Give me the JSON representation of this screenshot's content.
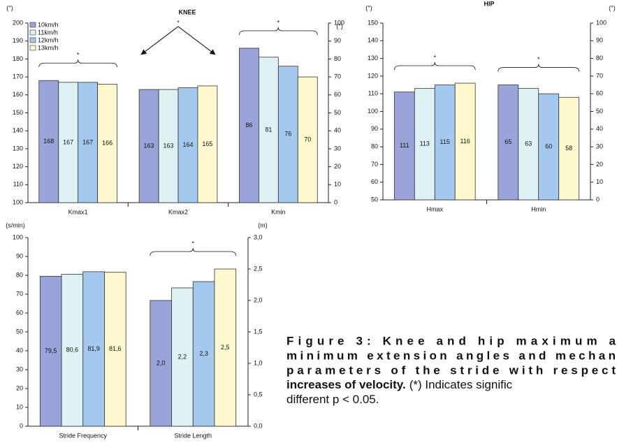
{
  "chart_data": [
    {
      "type": "bar",
      "title": "KNEE",
      "ylabel": "(°)",
      "y2label": "(°)",
      "categories": [
        "Kmax1",
        "Kmax2",
        "Kmin"
      ],
      "category_axes": [
        "y",
        "y",
        "y2"
      ],
      "series": [
        {
          "name": "10km/h",
          "color": "#9ba4d8",
          "values": [
            168,
            163,
            86
          ]
        },
        {
          "name": "11km/h",
          "color": "#def2f5",
          "values": [
            167,
            163,
            81
          ]
        },
        {
          "name": "12km/h",
          "color": "#a5c9ee",
          "values": [
            167,
            164,
            76
          ]
        },
        {
          "name": "13km/h",
          "color": "#fdf8cd",
          "values": [
            166,
            165,
            70
          ]
        }
      ],
      "ylim": [
        100,
        200
      ],
      "yticks": [
        100,
        110,
        120,
        130,
        140,
        150,
        160,
        170,
        180,
        190,
        200
      ],
      "y2lim": [
        0,
        100
      ],
      "y2ticks": [
        0,
        10,
        20,
        30,
        40,
        50,
        60,
        70,
        80,
        90,
        100
      ],
      "legend": "upper left",
      "annotations": [
        {
          "text": "*",
          "category": "Kmax1",
          "kind": "brace"
        },
        {
          "text": "*",
          "category": "Kmax2",
          "kind": "arrows"
        },
        {
          "text": "*",
          "category": "Kmin",
          "kind": "brace"
        }
      ]
    },
    {
      "type": "bar",
      "title": "HIP",
      "ylabel": "(°)",
      "y2label": "(°)",
      "categories": [
        "Hmax",
        "Hmin"
      ],
      "category_axes": [
        "y",
        "y2"
      ],
      "series": [
        {
          "color": "#9ba4d8",
          "values": [
            111,
            65
          ]
        },
        {
          "color": "#def2f5",
          "values": [
            113,
            63
          ]
        },
        {
          "color": "#a5c9ee",
          "values": [
            115,
            60
          ]
        },
        {
          "color": "#fdf8cd",
          "values": [
            116,
            58
          ]
        }
      ],
      "ylim": [
        50,
        150
      ],
      "yticks": [
        50,
        60,
        70,
        80,
        90,
        100,
        110,
        120,
        130,
        140,
        150
      ],
      "y2lim": [
        0,
        100
      ],
      "y2ticks": [
        0,
        10,
        20,
        30,
        40,
        50,
        60,
        70,
        80,
        90,
        100
      ],
      "annotations": [
        {
          "text": "*",
          "category": "Hmax",
          "kind": "brace"
        },
        {
          "text": "*",
          "category": "Hmin",
          "kind": "brace"
        }
      ]
    },
    {
      "type": "bar",
      "ylabel": "(s/min)",
      "y2label": "(m)",
      "categories": [
        "Stride Frequency",
        "Stride Length"
      ],
      "category_axes": [
        "y",
        "y2"
      ],
      "series": [
        {
          "color": "#9ba4d8",
          "values": [
            79.5,
            2.0
          ],
          "value_labels": [
            "79,5",
            "2,0"
          ]
        },
        {
          "color": "#def2f5",
          "values": [
            80.6,
            2.2
          ],
          "value_labels": [
            "80,6",
            "2,2"
          ]
        },
        {
          "color": "#a5c9ee",
          "values": [
            81.9,
            2.3
          ],
          "value_labels": [
            "81,9",
            "2,3"
          ]
        },
        {
          "color": "#fdf8cd",
          "values": [
            81.6,
            2.5
          ],
          "value_labels": [
            "81,6",
            "2,5"
          ]
        }
      ],
      "ylim": [
        0,
        100
      ],
      "yticks": [
        0,
        10,
        20,
        30,
        40,
        50,
        60,
        70,
        80,
        90,
        100
      ],
      "y2lim": [
        0,
        3
      ],
      "y2ticks": [
        {
          "value": 0,
          "label": "0,0"
        },
        {
          "value": 0.5,
          "label": "0,5"
        },
        {
          "value": 1,
          "label": "1,0"
        },
        {
          "value": 1.5,
          "label": "1,5"
        },
        {
          "value": 2,
          "label": "2,0"
        },
        {
          "value": 2.5,
          "label": "2,5"
        },
        {
          "value": 3,
          "label": "3,0"
        }
      ],
      "annotations": [
        {
          "text": "*",
          "category": "Stride Length",
          "kind": "brace"
        }
      ]
    }
  ],
  "caption": {
    "bold_lines": [
      "Figure 3: Knee and hip maximum a",
      "minimum extension angles and mechan",
      "parameters of the stride with respect",
      "increases of velocity."
    ],
    "normal_lines": [
      "(*) Indicates signific",
      "different p < 0.05."
    ]
  }
}
